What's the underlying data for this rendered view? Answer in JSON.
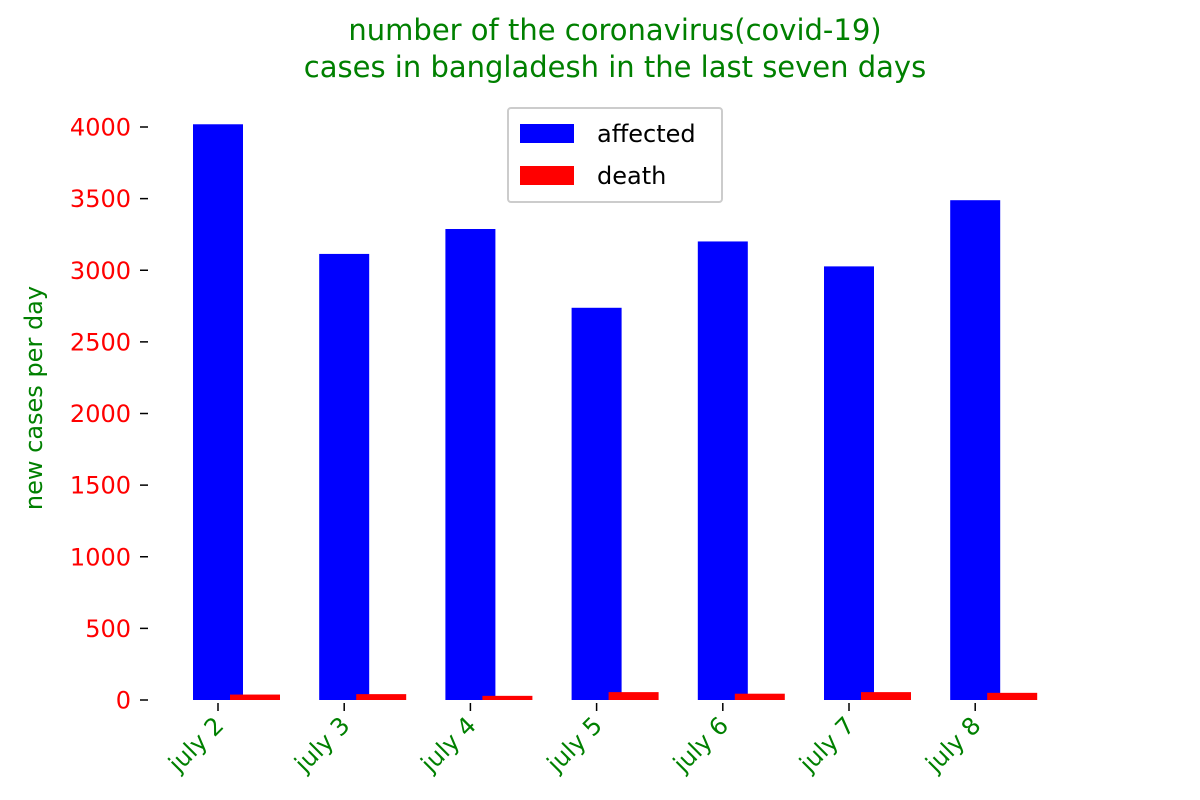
{
  "chart_data": {
    "type": "bar",
    "title_lines": [
      "number of the coronavirus(covid-19)",
      "cases in bangladesh in the last seven days"
    ],
    "xlabel": "",
    "ylabel": "new cases per day",
    "categories": [
      "july 2",
      "july 3",
      "july 4",
      "july 5",
      "july 6",
      "july 7",
      "july 8"
    ],
    "series": [
      {
        "name": "affected",
        "color": "#0000ff",
        "values": [
          4019,
          3114,
          3288,
          2738,
          3201,
          3027,
          3489
        ]
      },
      {
        "name": "death",
        "color": "#ff0000",
        "values": [
          38,
          41,
          29,
          55,
          44,
          55,
          50
        ]
      }
    ],
    "ylim": [
      0,
      4200
    ],
    "yticks": [
      0,
      500,
      1000,
      1500,
      2000,
      2500,
      3000,
      3500,
      4000
    ],
    "grid": false,
    "legend_position": "top-center",
    "colors": {
      "title": "#008000",
      "ylabel": "#008000",
      "xtick_labels": "#008000",
      "ytick_labels": "#ff0000"
    }
  }
}
